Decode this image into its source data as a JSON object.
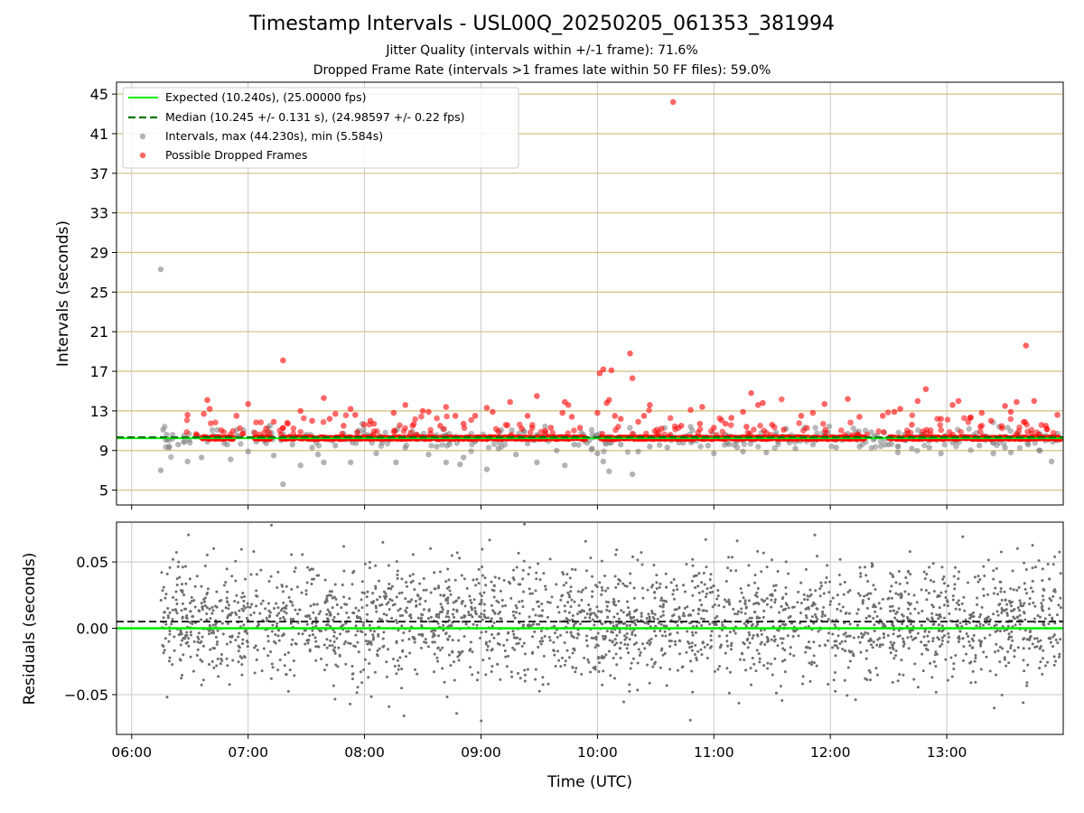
{
  "chart_data": [
    {
      "type": "scatter",
      "title": "Timestamp Intervals - USL00Q_20250205_061353_381994",
      "subtitles": [
        "Jitter Quality (intervals within +/-1 frame): 71.6%",
        "Dropped Frame Rate (intervals >1 frames late within 50 FF files): 59.0%"
      ],
      "xlabel": "",
      "ylabel": "Intervals (seconds)",
      "x_range_hours": [
        5.87,
        14.0
      ],
      "ylim": [
        3.5,
        46.2
      ],
      "yticks": [
        5,
        9,
        13,
        17,
        21,
        25,
        29,
        33,
        37,
        41,
        45
      ],
      "grid": "on",
      "legend": {
        "placement": "top-left",
        "entries": [
          "Expected (10.240s), (25.00000 fps)",
          "Median (10.245 +/- 0.131 s), (24.98597 +/- 0.22 fps)",
          "Intervals, max (44.230s), min (5.584s)",
          "Possible Dropped Frames"
        ]
      },
      "expected_interval": 10.24,
      "median_interval": 10.245,
      "expected_color": "#00ee00",
      "median_color": "#007700",
      "interval_color": "#808080",
      "dropped_color": "#ff0000",
      "dense_band": {
        "x_range_hours": [
          6.25,
          13.98
        ],
        "value": 10.25,
        "note": "continuous stream of points at the median"
      },
      "intervals": [
        [
          6.25,
          27.3
        ],
        [
          6.25,
          7.0
        ],
        [
          6.27,
          11.1
        ],
        [
          6.3,
          10.6
        ],
        [
          6.32,
          9.3
        ],
        [
          6.35,
          10.2
        ],
        [
          6.4,
          9.6
        ],
        [
          6.45,
          10.5
        ],
        [
          6.48,
          7.9
        ],
        [
          6.5,
          9.8
        ],
        [
          6.55,
          10.4
        ],
        [
          6.6,
          8.3
        ],
        [
          6.65,
          9.9
        ],
        [
          6.75,
          10.4
        ],
        [
          6.82,
          9.6
        ],
        [
          6.85,
          8.1
        ],
        [
          6.9,
          10.5
        ],
        [
          7.0,
          8.9
        ],
        [
          7.07,
          9.9
        ],
        [
          7.2,
          10.8
        ],
        [
          7.22,
          8.5
        ],
        [
          7.3,
          5.6
        ],
        [
          7.38,
          9.6
        ],
        [
          7.45,
          7.5
        ],
        [
          7.5,
          10.6
        ],
        [
          7.55,
          9.3
        ],
        [
          7.6,
          8.6
        ],
        [
          7.65,
          7.8
        ],
        [
          7.75,
          9.5
        ],
        [
          7.82,
          10.7
        ],
        [
          7.88,
          7.8
        ],
        [
          7.95,
          11.0
        ],
        [
          8.05,
          10.4
        ],
        [
          8.1,
          8.7
        ],
        [
          8.15,
          9.8
        ],
        [
          8.27,
          7.8
        ],
        [
          8.35,
          9.3
        ],
        [
          8.45,
          10.6
        ],
        [
          8.55,
          8.6
        ],
        [
          8.62,
          9.4
        ],
        [
          8.7,
          7.8
        ],
        [
          8.78,
          10.3
        ],
        [
          8.82,
          7.6
        ],
        [
          8.85,
          8.3
        ],
        [
          8.95,
          9.9
        ],
        [
          9.05,
          7.1
        ],
        [
          9.15,
          9.2
        ],
        [
          9.25,
          10.5
        ],
        [
          9.3,
          8.6
        ],
        [
          9.4,
          9.7
        ],
        [
          9.48,
          7.8
        ],
        [
          9.55,
          10.6
        ],
        [
          9.65,
          9.0
        ],
        [
          9.72,
          7.5
        ],
        [
          9.8,
          9.6
        ],
        [
          9.88,
          10.6
        ],
        [
          9.95,
          9.1
        ],
        [
          10.0,
          8.7
        ],
        [
          10.05,
          7.9
        ],
        [
          10.1,
          6.9
        ],
        [
          10.2,
          9.6
        ],
        [
          10.3,
          6.6
        ],
        [
          10.35,
          8.9
        ],
        [
          10.45,
          9.4
        ],
        [
          10.6,
          9.3
        ],
        [
          10.7,
          9.8
        ],
        [
          10.8,
          11.4
        ],
        [
          10.88,
          10.4
        ],
        [
          10.95,
          9.5
        ],
        [
          11.0,
          8.7
        ],
        [
          11.1,
          10.6
        ],
        [
          11.2,
          9.3
        ],
        [
          11.25,
          8.9
        ],
        [
          11.35,
          10.1
        ],
        [
          11.45,
          8.8
        ],
        [
          11.55,
          9.9
        ],
        [
          11.62,
          11.2
        ],
        [
          11.7,
          9.2
        ],
        [
          11.78,
          11.3
        ],
        [
          11.85,
          9.6
        ],
        [
          11.95,
          10.5
        ],
        [
          12.05,
          9.3
        ],
        [
          12.15,
          10.7
        ],
        [
          12.25,
          9.4
        ],
        [
          12.4,
          10.5
        ],
        [
          12.5,
          9.6
        ],
        [
          12.58,
          8.8
        ],
        [
          12.7,
          9.2
        ],
        [
          12.78,
          10.6
        ],
        [
          12.85,
          9.3
        ],
        [
          12.95,
          8.7
        ],
        [
          13.05,
          9.8
        ],
        [
          13.15,
          10.4
        ],
        [
          13.28,
          9.5
        ],
        [
          13.4,
          8.7
        ],
        [
          13.45,
          11.4
        ],
        [
          13.5,
          9.3
        ],
        [
          13.55,
          8.8
        ],
        [
          13.62,
          10.5
        ],
        [
          13.7,
          9.6
        ],
        [
          13.8,
          9.0
        ],
        [
          13.85,
          10.5
        ],
        [
          13.9,
          7.9
        ],
        [
          13.95,
          10.7
        ]
      ],
      "dropped": [
        [
          6.48,
          12.6
        ],
        [
          6.62,
          12.7
        ],
        [
          6.65,
          14.1
        ],
        [
          6.67,
          13.2
        ],
        [
          6.9,
          12.5
        ],
        [
          7.0,
          13.7
        ],
        [
          7.22,
          11.9
        ],
        [
          7.3,
          18.1
        ],
        [
          7.45,
          13.0
        ],
        [
          7.55,
          12.0
        ],
        [
          7.65,
          14.3
        ],
        [
          7.7,
          12.2
        ],
        [
          7.75,
          12.7
        ],
        [
          7.82,
          11.5
        ],
        [
          7.88,
          13.2
        ],
        [
          7.92,
          12.6
        ],
        [
          8.05,
          12.0
        ],
        [
          8.08,
          11.7
        ],
        [
          8.25,
          12.8
        ],
        [
          8.35,
          13.6
        ],
        [
          8.5,
          13.0
        ],
        [
          8.55,
          12.9
        ],
        [
          8.65,
          11.5
        ],
        [
          8.7,
          13.4
        ],
        [
          8.78,
          12.5
        ],
        [
          8.85,
          11.7
        ],
        [
          8.95,
          12.5
        ],
        [
          9.05,
          13.3
        ],
        [
          9.1,
          12.9
        ],
        [
          9.25,
          13.9
        ],
        [
          9.35,
          11.2
        ],
        [
          9.4,
          12.5
        ],
        [
          9.48,
          14.5
        ],
        [
          9.55,
          11.0
        ],
        [
          9.6,
          11.3
        ],
        [
          9.7,
          12.8
        ],
        [
          9.72,
          13.9
        ],
        [
          9.75,
          13.6
        ],
        [
          9.78,
          12.4
        ],
        [
          9.85,
          11.3
        ],
        [
          10.0,
          12.8
        ],
        [
          10.02,
          16.8
        ],
        [
          10.05,
          17.2
        ],
        [
          10.08,
          13.8
        ],
        [
          10.1,
          14.1
        ],
        [
          10.12,
          17.1
        ],
        [
          10.15,
          12.5
        ],
        [
          10.2,
          12.2
        ],
        [
          10.28,
          18.8
        ],
        [
          10.3,
          16.3
        ],
        [
          10.35,
          11.9
        ],
        [
          10.4,
          12.5
        ],
        [
          10.45,
          13.6
        ],
        [
          10.55,
          11.2
        ],
        [
          10.65,
          44.2
        ],
        [
          10.72,
          11.5
        ],
        [
          10.8,
          13.1
        ],
        [
          10.88,
          11.7
        ],
        [
          10.9,
          13.4
        ],
        [
          11.0,
          11.3
        ],
        [
          11.1,
          11.7
        ],
        [
          11.15,
          12.3
        ],
        [
          11.25,
          12.9
        ],
        [
          11.28,
          11.4
        ],
        [
          11.32,
          14.8
        ],
        [
          11.38,
          13.6
        ],
        [
          11.42,
          13.8
        ],
        [
          11.5,
          11.6
        ],
        [
          11.6,
          11.1
        ],
        [
          11.75,
          12.5
        ],
        [
          11.85,
          12.8
        ],
        [
          11.95,
          13.7
        ],
        [
          12.15,
          14.2
        ],
        [
          12.25,
          12.4
        ],
        [
          12.45,
          12.5
        ],
        [
          12.55,
          12.9
        ],
        [
          12.6,
          13.2
        ],
        [
          12.7,
          11.6
        ],
        [
          12.75,
          14.0
        ],
        [
          12.82,
          15.2
        ],
        [
          12.95,
          12.2
        ],
        [
          13.05,
          13.6
        ],
        [
          13.1,
          14.0
        ],
        [
          13.2,
          12.3
        ],
        [
          13.3,
          12.8
        ],
        [
          13.38,
          12.0
        ],
        [
          13.5,
          13.5
        ],
        [
          13.55,
          12.9
        ],
        [
          13.6,
          13.9
        ],
        [
          13.68,
          19.6
        ],
        [
          13.75,
          14.0
        ],
        [
          13.85,
          11.5
        ],
        [
          13.95,
          12.6
        ]
      ]
    },
    {
      "type": "scatter",
      "title": "",
      "xlabel": "Time (UTC)",
      "ylabel": "Residuals (seconds)",
      "x_range_hours": [
        5.87,
        14.0
      ],
      "ylim": [
        -0.08,
        0.08
      ],
      "yticks": [
        -0.05,
        0.0,
        0.05
      ],
      "ytick_labels": [
        "−0.05",
        "0.00",
        "0.05"
      ],
      "xticks_hours": [
        6,
        7,
        8,
        9,
        10,
        11,
        12,
        13
      ],
      "xtick_labels": [
        "06:00",
        "07:00",
        "08:00",
        "09:00",
        "10:00",
        "11:00",
        "12:00",
        "13:00"
      ],
      "grid": "on",
      "expected_residual": 0.0,
      "median_residual": 0.005,
      "residual_color": "#6e6e6e",
      "residual_spread_sd": 0.022,
      "residual_x_range_hours": [
        6.25,
        14.0
      ],
      "residual_count": 2600
    }
  ]
}
